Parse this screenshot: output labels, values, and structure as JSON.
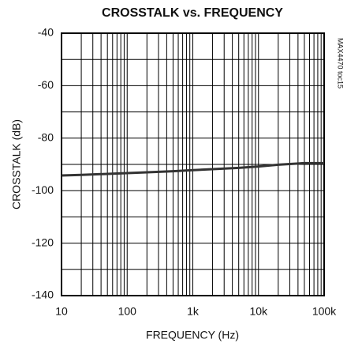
{
  "chart_data": {
    "type": "line",
    "title": "CROSSTALK vs. FREQUENCY",
    "xlabel": "FREQUENCY (Hz)",
    "ylabel": "CROSSTALK (dB)",
    "annotation": "MAX4470 toc15",
    "xscale": "log",
    "grid": true,
    "x": [
      10,
      20,
      50,
      100,
      200,
      500,
      1000,
      2000,
      5000,
      10000,
      20000,
      50000,
      100000
    ],
    "series": [
      {
        "name": "crosstalk",
        "color": "#333333",
        "values": [
          -94.2,
          -94,
          -93.6,
          -93.3,
          -93,
          -92.6,
          -92.2,
          -91.8,
          -91.3,
          -90.8,
          -90.1,
          -89.5,
          -89.5
        ]
      }
    ],
    "xlim": [
      10,
      100000
    ],
    "xticks": [
      10,
      100,
      {
        "value": 1000,
        "label": "1k"
      },
      {
        "value": 10000,
        "label": "10k"
      },
      {
        "value": 100000,
        "label": "100k"
      }
    ],
    "ylim": [
      -140,
      -40
    ],
    "yticks": [
      -140,
      -120,
      -100,
      -80,
      -60,
      -40
    ],
    "yminorticks": [
      -130,
      -110,
      -90,
      -70,
      -50
    ]
  }
}
